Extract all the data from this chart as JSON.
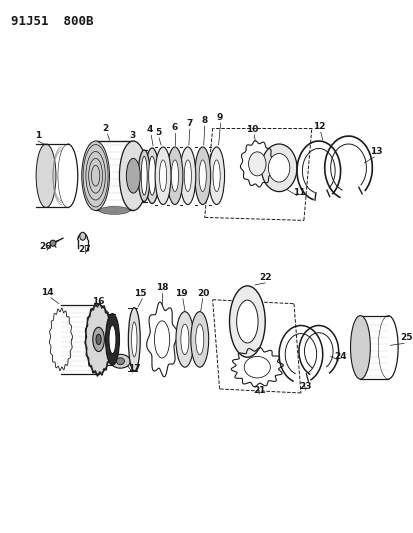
{
  "title": "91J51  800B",
  "bg_color": "#ffffff",
  "line_color": "#1a1a1a",
  "title_fontsize": 9,
  "label_fontsize": 6.5,
  "fig_width": 4.14,
  "fig_height": 5.33,
  "dpi": 100
}
